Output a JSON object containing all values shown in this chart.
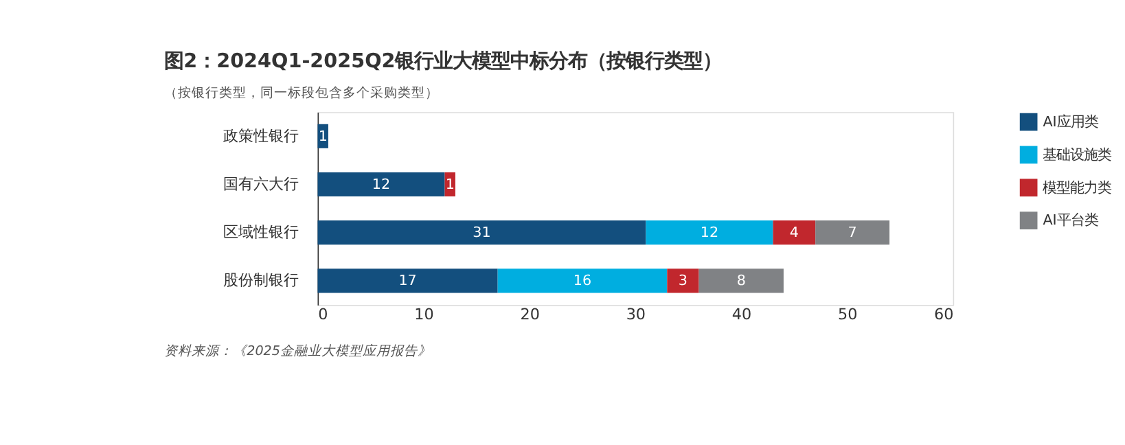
{
  "chart_data": {
    "type": "bar",
    "orientation": "horizontal",
    "stacked": true,
    "title": "图2：2024Q1-2025Q2银行业大模型中标分布（按银行类型）",
    "subtitle": "（按银行类型，同一标段包含多个采购类型）",
    "categories": [
      "政策性银行",
      "国有六大行",
      "区域性银行",
      "股份制银行"
    ],
    "series": [
      {
        "name": "AI应用类",
        "color": "#134f7e",
        "values": [
          1,
          12,
          31,
          17
        ]
      },
      {
        "name": "基础设施类",
        "color": "#00aee0",
        "values": [
          null,
          null,
          12,
          16
        ]
      },
      {
        "name": "模型能力类",
        "color": "#c1272d",
        "values": [
          null,
          1,
          4,
          3
        ]
      },
      {
        "name": "AI平台类",
        "color": "#808285",
        "values": [
          null,
          null,
          7,
          8
        ]
      }
    ],
    "xlim": [
      0,
      60
    ],
    "xticks": [
      0,
      10,
      20,
      30,
      40,
      50,
      60
    ],
    "grid": false,
    "legend": "right",
    "data_labels": true,
    "annotations": [
      "资料来源：《2025金融业大模型应用报告》"
    ]
  }
}
